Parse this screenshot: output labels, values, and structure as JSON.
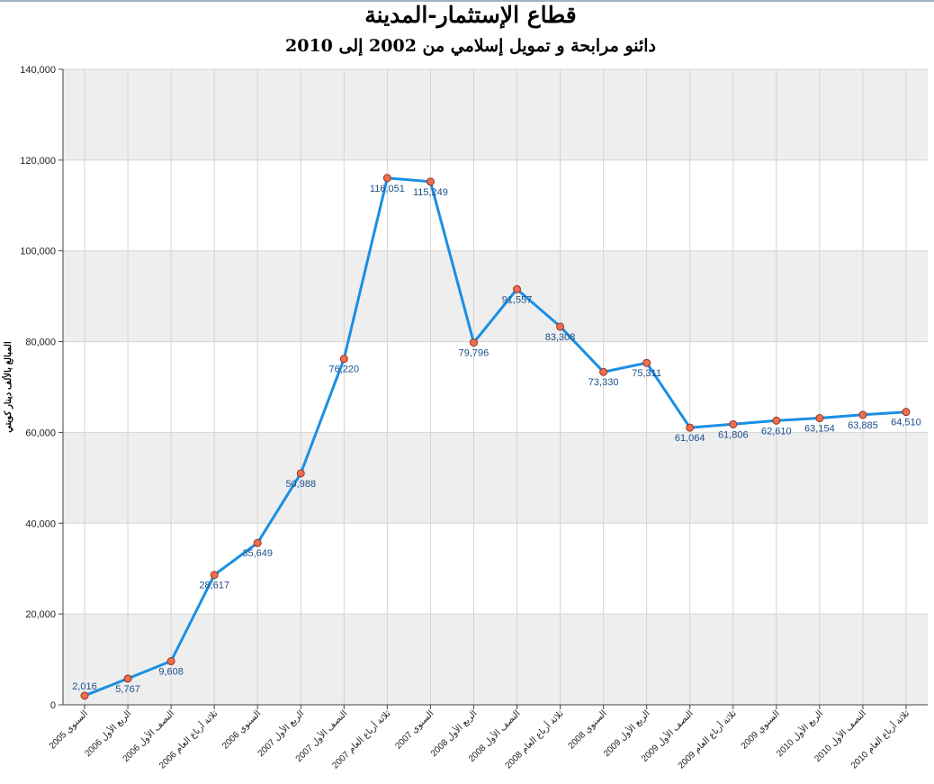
{
  "chart_data": {
    "type": "line",
    "title": "قطاع الإستثمار-المدينة",
    "subtitle": "دائنو مرابحة و تمويل إسلامي من 2002 إلى 2010",
    "ylabel": "المبالغ بالألف دينار كويتي",
    "xlabel": "",
    "ylim": [
      0,
      140000
    ],
    "yticks": [
      0,
      20000,
      40000,
      60000,
      80000,
      100000,
      120000,
      140000
    ],
    "ytick_labels": [
      "0",
      "20,000",
      "40,000",
      "60,000",
      "80,000",
      "100,000",
      "120,000",
      "140,000"
    ],
    "grid": true,
    "categories": [
      "السنوي 2005",
      "الربع الأول 2006",
      "النصف الأول 2006",
      "ثلاثة أرباع العام 2006",
      "السنوي 2006",
      "الربع الأول 2007",
      "النصف الأول 2007",
      "ثلاثة أرباع العام 2007",
      "السنوي 2007",
      "الربع الأول 2008",
      "النصف الأول 2008",
      "ثلاثة أرباع العام 2008",
      "السنوي 2008",
      "الربع الأول 2009",
      "النصف الأول 2009",
      "ثلاثة أرباع العام 2009",
      "السنوي 2009",
      "الربع الأول 2010",
      "النصف الأول 2010",
      "ثلاثة أرباع العام 2010"
    ],
    "values": [
      2016,
      5767,
      9608,
      28617,
      35649,
      50988,
      76220,
      116051,
      115249,
      79796,
      91557,
      83308,
      73330,
      75311,
      61064,
      61806,
      62610,
      63154,
      63885,
      64510
    ],
    "value_labels": [
      "2,016",
      "5,767",
      "9,608",
      "28,617",
      "35,649",
      "50,988",
      "76,220",
      "116,051",
      "115,249",
      "79,796",
      "91,557",
      "83,308",
      "73,330",
      "75,311",
      "61,064",
      "61,806",
      "62,610",
      "63,154",
      "63,885",
      "64,510"
    ],
    "colors": {
      "line": "#1a8fe3",
      "marker_fill": "#f26c4f",
      "marker_stroke": "#8a3a20",
      "band": "#eeeeee",
      "label": "#1a4e8a"
    }
  }
}
